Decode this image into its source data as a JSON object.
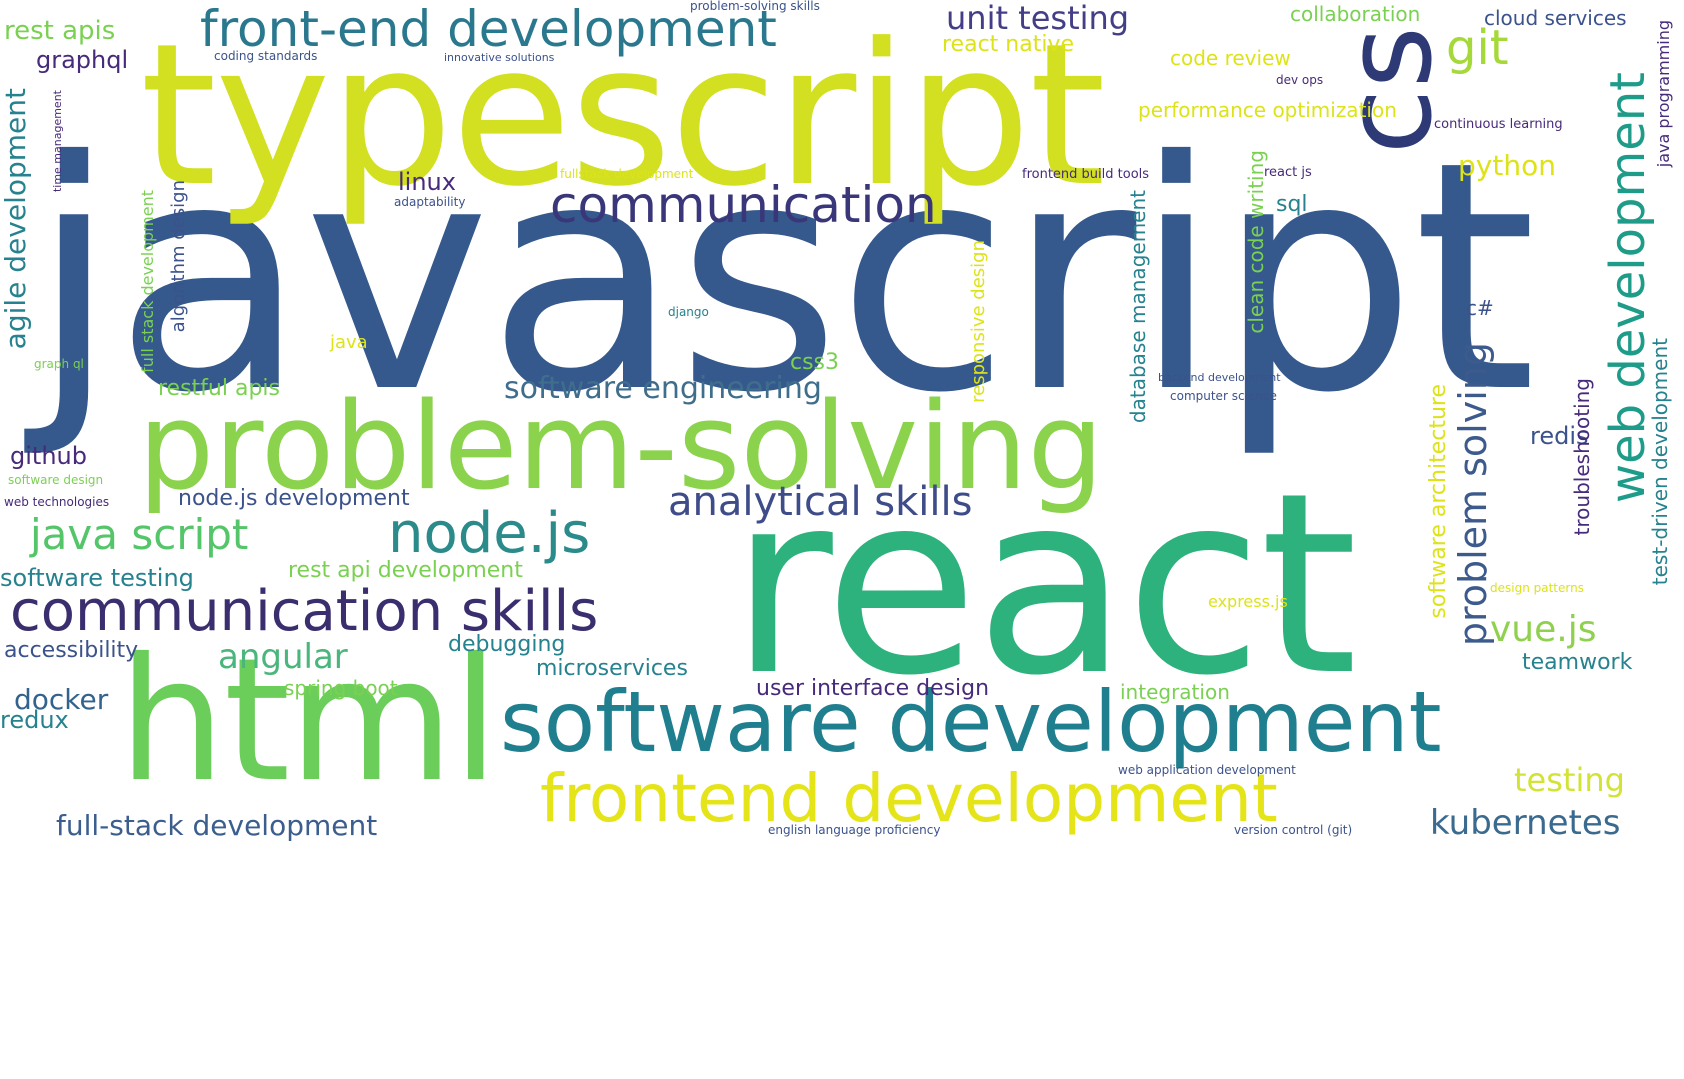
{
  "palette": {
    "javascript": "#35598c",
    "typescript": "#d2e021",
    "react": "#2db27d",
    "html": "#6cce5a",
    "problem_solving": "#8bd34c",
    "software_development": "#1f7f8e",
    "frontend_development": "#e4e419",
    "communication": "#39367a",
    "communication_skills": "#3b2e6f",
    "node_js": "#2b8a8a",
    "analytical_skills": "#3e4c89",
    "java_script": "#54c568",
    "web_development": "#1e9c89",
    "problem_solving_vertical": "#3c5a8c",
    "cs": "#2d3a75",
    "git": "#a5d93a",
    "front_end_development": "#2a788e",
    "unit_testing": "#433e85",
    "software_engineering": "#3f6e8c",
    "kubernetes": "#3b6a8f",
    "full_stack_development": "#3b5e8e",
    "angular": "#4ab67c",
    "vue_js": "#8fd14f",
    "testing": "#d2e335",
    "docker": "#33638d",
    "small_purple": "#472a7a",
    "small_teal": "#26828e",
    "small_green": "#7ad151",
    "small_yellow": "#dde318",
    "small_blue": "#3b528b"
  },
  "words": [
    {
      "text": "javascript",
      "color": "javascript"
    },
    {
      "text": "typescript",
      "color": "typescript"
    },
    {
      "text": "react",
      "color": "react"
    },
    {
      "text": "html",
      "color": "html"
    },
    {
      "text": "problem-solving",
      "color": "problem_solving"
    },
    {
      "text": "software development",
      "color": "software_development"
    },
    {
      "text": "frontend development",
      "color": "frontend_development"
    },
    {
      "text": "communication",
      "color": "communication"
    },
    {
      "text": "communication skills",
      "color": "communication_skills"
    },
    {
      "text": "node.js",
      "color": "node_js"
    },
    {
      "text": "analytical skills",
      "color": "analytical_skills"
    },
    {
      "text": "java script",
      "color": "java_script"
    },
    {
      "text": "front-end development",
      "color": "front_end_development"
    },
    {
      "text": "cs",
      "color": "cs"
    },
    {
      "text": "web development",
      "color": "web_development"
    },
    {
      "text": "problem solving",
      "color": "problem_solving_vertical"
    },
    {
      "text": "git",
      "color": "git"
    },
    {
      "text": "unit testing",
      "color": "unit_testing"
    },
    {
      "text": "software engineering",
      "color": "software_engineering"
    },
    {
      "text": "kubernetes",
      "color": "kubernetes"
    },
    {
      "text": "full-stack development",
      "color": "full_stack_development"
    },
    {
      "text": "angular",
      "color": "angular"
    },
    {
      "text": "vue.js",
      "color": "vue_js"
    },
    {
      "text": "testing",
      "color": "testing"
    },
    {
      "text": "docker",
      "color": "docker"
    },
    {
      "text": "redux",
      "color": "small_teal"
    },
    {
      "text": "rest apis",
      "color": "small_green"
    },
    {
      "text": "graphql",
      "color": "small_purple"
    },
    {
      "text": "github",
      "color": "small_purple"
    },
    {
      "text": "accessibility",
      "color": "small_blue"
    },
    {
      "text": "software testing",
      "color": "small_teal"
    },
    {
      "text": "node.js development",
      "color": "small_blue"
    },
    {
      "text": "rest api development",
      "color": "small_green"
    },
    {
      "text": "restful apis",
      "color": "small_green"
    },
    {
      "text": "agile development",
      "color": "small_teal"
    },
    {
      "text": "python",
      "color": "small_yellow"
    },
    {
      "text": "sql",
      "color": "small_teal"
    },
    {
      "text": "linux",
      "color": "small_purple"
    },
    {
      "text": "css3",
      "color": "small_green"
    },
    {
      "text": "redis",
      "color": "small_blue"
    },
    {
      "text": "teamwork",
      "color": "small_teal"
    },
    {
      "text": "microservices",
      "color": "small_teal"
    },
    {
      "text": "debugging",
      "color": "small_teal"
    },
    {
      "text": "spring boot",
      "color": "small_green"
    },
    {
      "text": "user interface design",
      "color": "small_purple"
    },
    {
      "text": "integration",
      "color": "small_green"
    },
    {
      "text": "collaboration",
      "color": "small_green"
    },
    {
      "text": "cloud services",
      "color": "small_blue"
    },
    {
      "text": "react native",
      "color": "small_yellow"
    },
    {
      "text": "code review",
      "color": "small_yellow"
    },
    {
      "text": "performance optimization",
      "color": "small_yellow"
    },
    {
      "text": "troubleshooting",
      "color": "small_purple"
    },
    {
      "text": "software architecture",
      "color": "small_yellow"
    },
    {
      "text": "test-driven development",
      "color": "small_teal"
    },
    {
      "text": "java programming",
      "color": "small_purple"
    },
    {
      "text": "database management",
      "color": "small_teal"
    },
    {
      "text": "clean code writing",
      "color": "small_green"
    },
    {
      "text": "algorithm design",
      "color": "small_blue"
    },
    {
      "text": "full stack development",
      "color": "small_green"
    },
    {
      "text": "c#",
      "color": "small_blue"
    },
    {
      "text": "java",
      "color": "small_yellow"
    },
    {
      "text": "web technologies",
      "color": "small_purple"
    },
    {
      "text": "software design",
      "color": "small_green"
    },
    {
      "text": "coding standards",
      "color": "small_blue"
    },
    {
      "text": "innovative solutions",
      "color": "small_blue"
    },
    {
      "text": "problem-solving skills",
      "color": "small_blue"
    },
    {
      "text": "frontend build tools",
      "color": "small_purple"
    },
    {
      "text": "react js",
      "color": "small_purple"
    },
    {
      "text": "adaptability",
      "color": "small_blue"
    },
    {
      "text": "computer science",
      "color": "small_blue"
    },
    {
      "text": "backend development",
      "color": "small_blue"
    },
    {
      "text": "continuous learning",
      "color": "small_purple"
    },
    {
      "text": "dev ops",
      "color": "small_purple"
    },
    {
      "text": "english language proficiency",
      "color": "small_blue"
    },
    {
      "text": "version control (git)",
      "color": "small_blue"
    },
    {
      "text": "web application development",
      "color": "small_blue"
    },
    {
      "text": "design patterns",
      "color": "small_yellow"
    },
    {
      "text": "express.js",
      "color": "small_yellow"
    },
    {
      "text": "fullstack development",
      "color": "small_yellow"
    },
    {
      "text": "responsive design",
      "color": "small_yellow"
    },
    {
      "text": "graph ql",
      "color": "small_green"
    },
    {
      "text": "django",
      "color": "small_teal"
    },
    {
      "text": "time management",
      "color": "small_purple"
    }
  ]
}
